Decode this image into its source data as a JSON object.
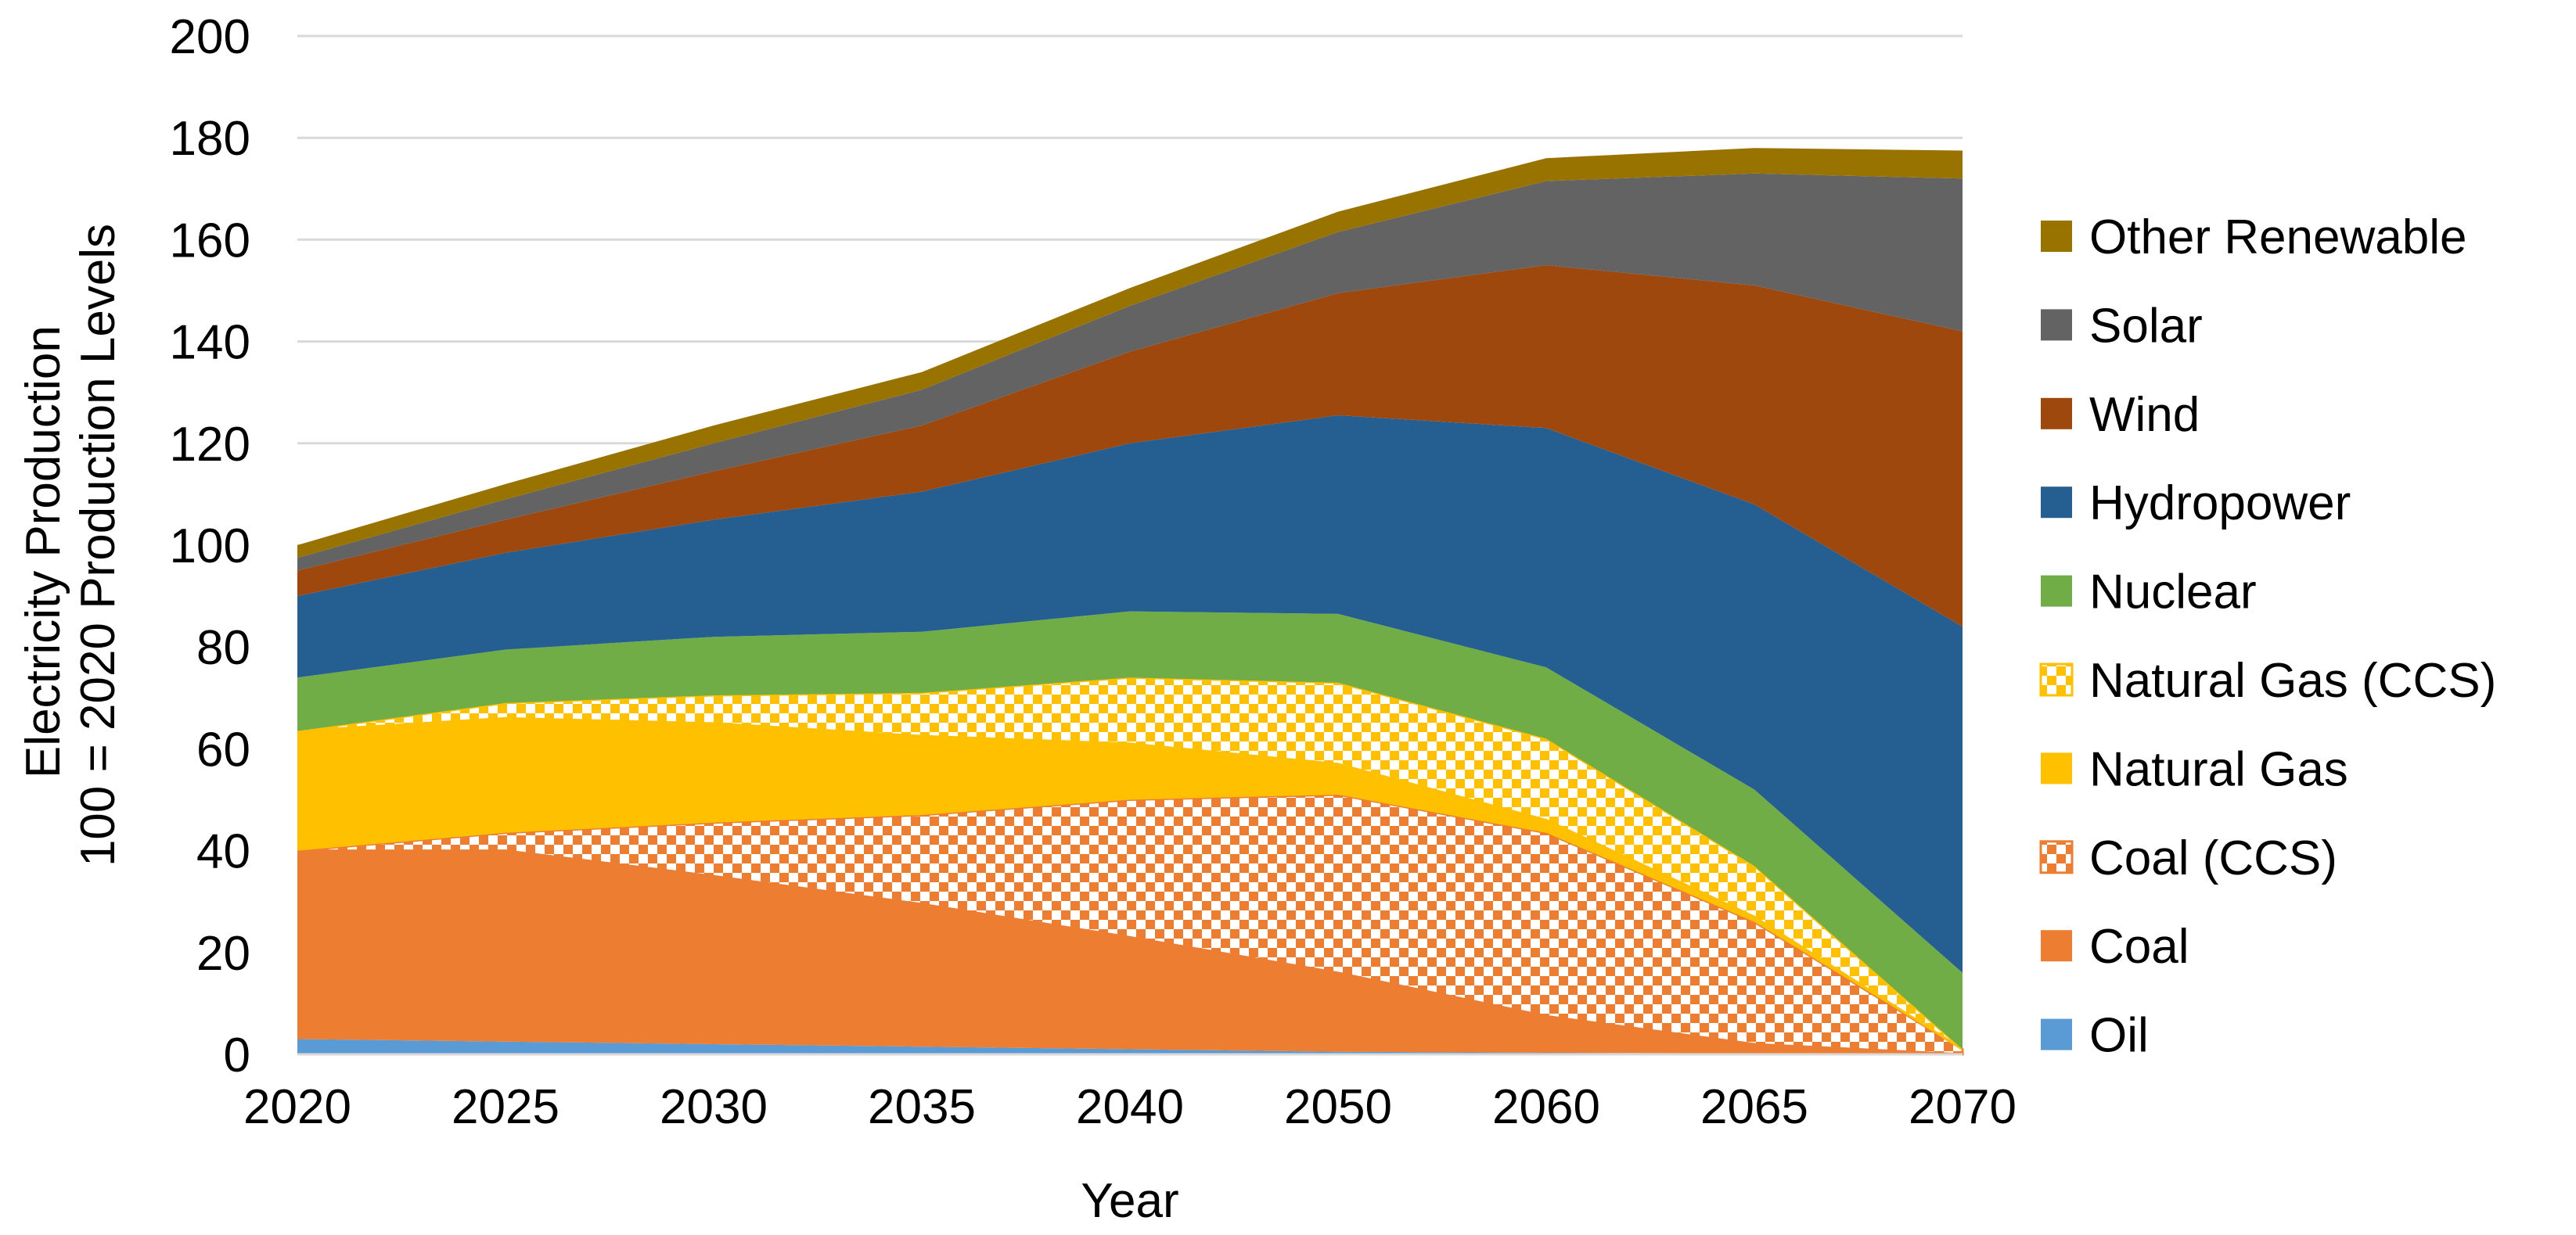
{
  "chart_data": {
    "type": "area",
    "stacked": true,
    "xlabel": "Year",
    "ylabel_lines": [
      "Electricity Production",
      "100 = 2020 Production Levels"
    ],
    "ylim": [
      0,
      200
    ],
    "yticks": [
      0,
      20,
      40,
      60,
      80,
      100,
      120,
      140,
      160,
      180,
      200
    ],
    "grid": "horizontal",
    "legend_position": "right",
    "categories": [
      "2020",
      "2025",
      "2030",
      "2035",
      "2040",
      "2050",
      "2060",
      "2065",
      "2070"
    ],
    "series": [
      {
        "name": "Oil",
        "color": "#5B9BD5",
        "pattern": "solid",
        "values": [
          3,
          2.5,
          2,
          1.5,
          1,
          0.5,
          0.3,
          0.2,
          0
        ]
      },
      {
        "name": "Coal",
        "color": "#ED7D31",
        "pattern": "solid",
        "values": [
          37,
          37.5,
          33,
          28,
          22,
          15.5,
          7.2,
          1.8,
          0
        ]
      },
      {
        "name": "Coal (CCS)",
        "color": "#ED7D31",
        "pattern": "checker",
        "values": [
          0,
          3.5,
          10.5,
          17.5,
          27,
          35,
          36,
          24,
          1
        ]
      },
      {
        "name": "Natural Gas",
        "color": "#FFC000",
        "pattern": "solid",
        "values": [
          23.5,
          22.5,
          19.5,
          15.5,
          11,
          6,
          2.5,
          1,
          0
        ]
      },
      {
        "name": "Natural Gas (CCS)",
        "color": "#FFC000",
        "pattern": "checker",
        "values": [
          0,
          3,
          5.5,
          8.5,
          13,
          16,
          16,
          10,
          0
        ]
      },
      {
        "name": "Nuclear",
        "color": "#70AD47",
        "pattern": "solid",
        "values": [
          10.5,
          10.5,
          11.5,
          12,
          13,
          13.5,
          14,
          15,
          15
        ]
      },
      {
        "name": "Hydropower",
        "color": "#255E91",
        "pattern": "solid",
        "values": [
          16,
          19,
          23,
          27.5,
          33,
          39,
          47,
          56,
          68
        ]
      },
      {
        "name": "Wind",
        "color": "#9E480E",
        "pattern": "solid",
        "values": [
          5,
          6.5,
          9.5,
          13,
          18,
          24,
          32,
          43,
          58
        ]
      },
      {
        "name": "Solar",
        "color": "#636363",
        "pattern": "solid",
        "values": [
          2.5,
          4,
          5.5,
          7,
          9,
          12,
          16.5,
          22,
          30
        ]
      },
      {
        "name": "Other Renewable",
        "color": "#997300",
        "pattern": "solid",
        "values": [
          2.5,
          3,
          3.5,
          3.5,
          3.5,
          4,
          4.5,
          5,
          5.5
        ]
      }
    ]
  }
}
